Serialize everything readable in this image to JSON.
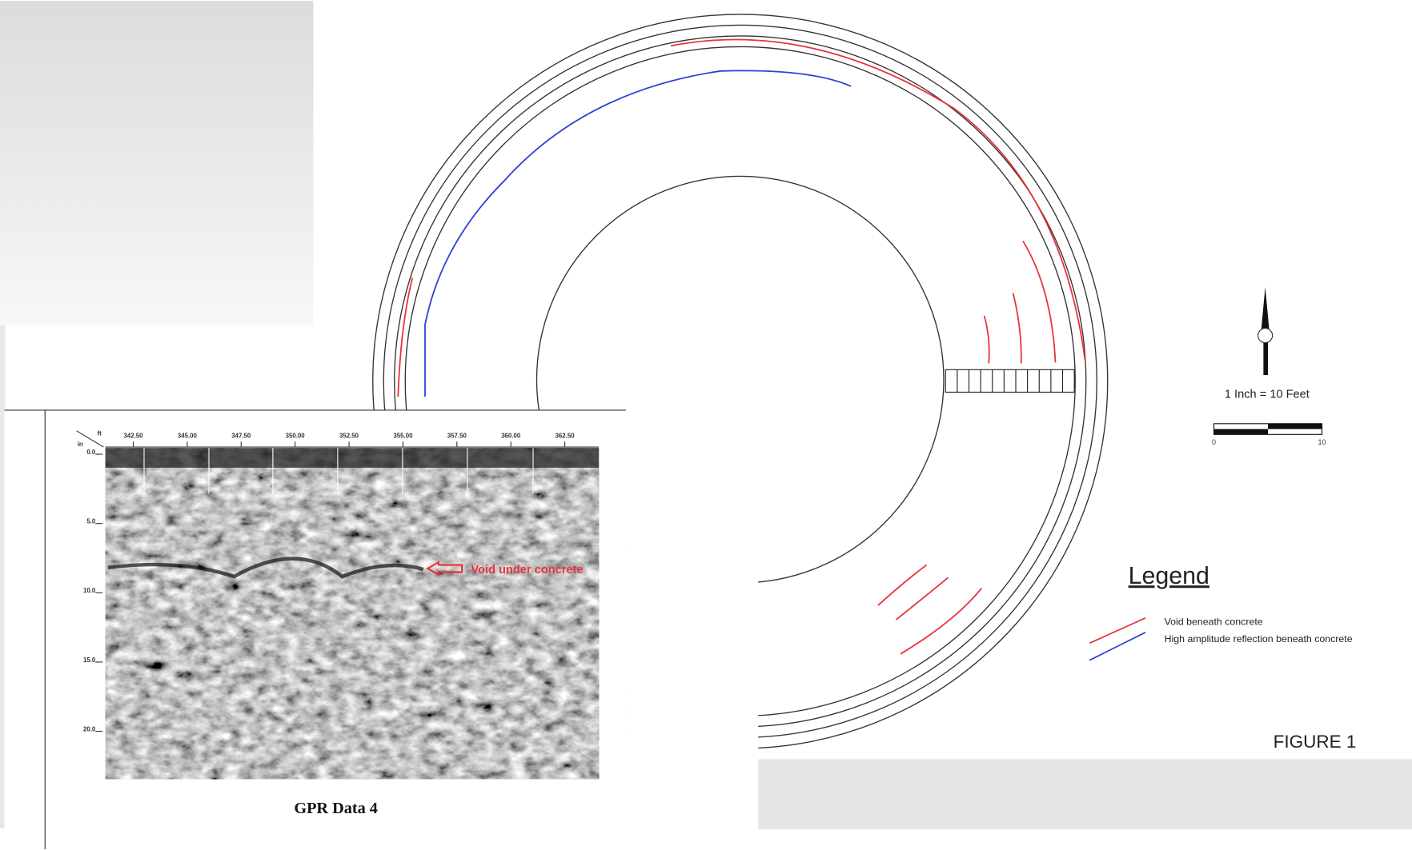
{
  "scale": {
    "text": "1 Inch = 10 Feet",
    "start": "0",
    "end": "10"
  },
  "legend": {
    "title": "Legend",
    "items": [
      "Void beneath concrete",
      "High amplitude reflection beneath concrete"
    ]
  },
  "figure_label": "FIGURE 1",
  "gpr": {
    "x_unit": "ft",
    "y_unit": "in",
    "x_ticks": [
      "342.50",
      "345.00",
      "347.50",
      "350.00",
      "352.50",
      "355.00",
      "357.50",
      "360.00",
      "362.50"
    ],
    "y_ticks": [
      "0.0",
      "5.0",
      "10.0",
      "15.0",
      "20.0"
    ],
    "annotation": "Void under concrete",
    "caption": "GPR Data 4"
  }
}
